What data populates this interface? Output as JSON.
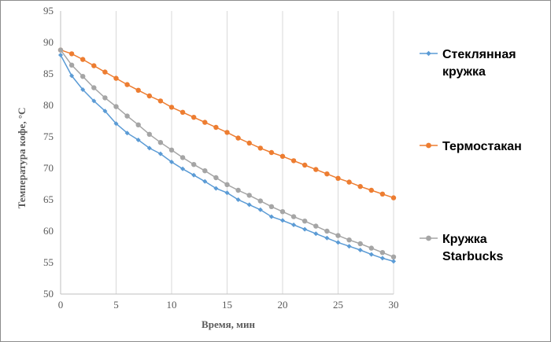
{
  "chart_data": {
    "type": "line",
    "xlabel": "Время, мин",
    "ylabel": "Температура кофе, °С",
    "xlim": [
      0,
      30
    ],
    "ylim": [
      50,
      95
    ],
    "xticks": [
      0,
      5,
      10,
      15,
      20,
      25,
      30
    ],
    "yticks": [
      50,
      55,
      60,
      65,
      70,
      75,
      80,
      85,
      90,
      95
    ],
    "grid": "vertical",
    "legend_position": "right",
    "x": [
      0,
      1,
      2,
      3,
      4,
      5,
      6,
      7,
      8,
      9,
      10,
      11,
      12,
      13,
      14,
      15,
      16,
      17,
      18,
      19,
      20,
      21,
      22,
      23,
      24,
      25,
      26,
      27,
      28,
      29,
      30
    ],
    "series": [
      {
        "name": "Стеклянная кружка",
        "legend_lines": [
          "Стеклянная",
          "кружка"
        ],
        "color": "#5b9bd5",
        "marker": "diamond",
        "values": [
          88.0,
          84.7,
          82.5,
          80.7,
          79.1,
          77.1,
          75.6,
          74.5,
          73.2,
          72.3,
          71.0,
          69.9,
          68.9,
          67.9,
          66.8,
          66.1,
          65.0,
          64.2,
          63.4,
          62.3,
          61.7,
          61.0,
          60.3,
          59.6,
          58.9,
          58.2,
          57.6,
          57.0,
          56.3,
          55.7,
          55.2
        ]
      },
      {
        "name": "Термостакан",
        "legend_lines": [
          "Термостакан"
        ],
        "color": "#ed7d31",
        "marker": "circle",
        "values": [
          88.8,
          88.2,
          87.3,
          86.3,
          85.3,
          84.3,
          83.3,
          82.4,
          81.5,
          80.7,
          79.7,
          78.9,
          78.1,
          77.3,
          76.5,
          75.7,
          74.8,
          74.0,
          73.2,
          72.5,
          71.9,
          71.2,
          70.5,
          69.8,
          69.1,
          68.4,
          67.8,
          67.1,
          66.5,
          65.9,
          65.3
        ]
      },
      {
        "name": "Кружка Starbucks",
        "legend_lines": [
          "Кружка",
          "Starbucks"
        ],
        "color": "#a5a5a5",
        "marker": "circle",
        "values": [
          88.8,
          86.4,
          84.6,
          82.8,
          81.2,
          79.8,
          78.3,
          76.9,
          75.4,
          74.1,
          72.9,
          71.7,
          70.6,
          69.6,
          68.5,
          67.4,
          66.5,
          65.7,
          64.8,
          63.9,
          63.1,
          62.3,
          61.6,
          60.8,
          60.0,
          59.3,
          58.6,
          58.0,
          57.3,
          56.6,
          55.9
        ]
      }
    ]
  }
}
